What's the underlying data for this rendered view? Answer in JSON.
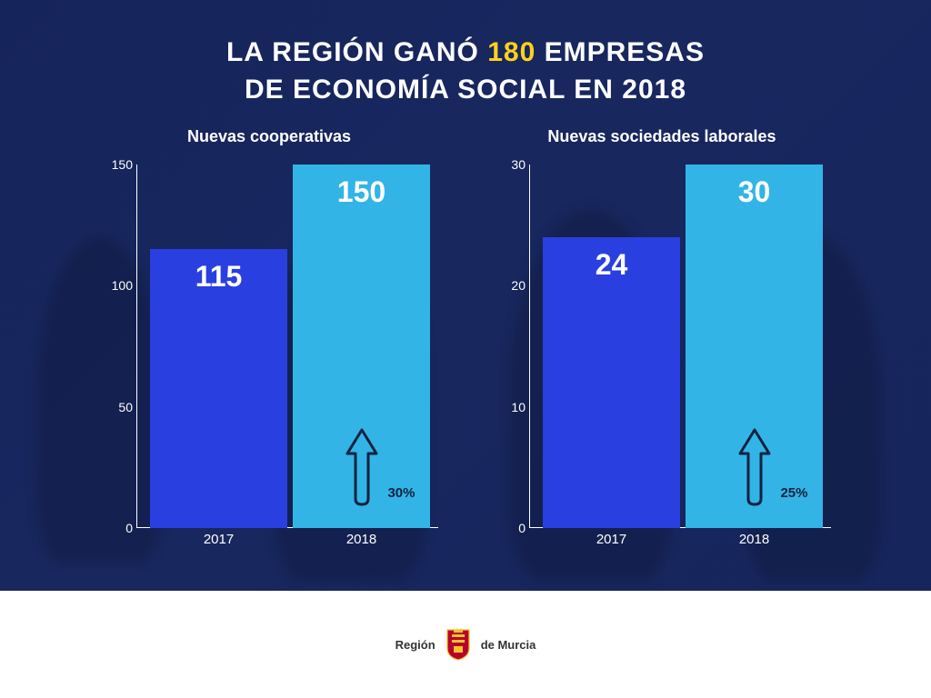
{
  "title": {
    "line1_pre": "LA REGIÓN GANÓ ",
    "highlight": "180",
    "line1_post": " EMPRESAS",
    "line2": "DE ECONOMÍA SOCIAL EN 2018",
    "color": "#ffffff",
    "highlight_color": "#ffd21a",
    "fontsize": 30
  },
  "background": {
    "overlay_color": "#14235a",
    "overlay_opacity": 0.82
  },
  "charts": [
    {
      "title": "Nuevas cooperativas",
      "type": "bar",
      "ylim": [
        0,
        150
      ],
      "yticks": [
        0,
        50,
        100,
        150
      ],
      "bars": [
        {
          "label": "2017",
          "value": 115,
          "color": "#2a3fe0"
        },
        {
          "label": "2018",
          "value": 150,
          "color": "#32b4e6",
          "growth_pct": "30%"
        }
      ],
      "axis_color": "#ffffff",
      "label_color": "#ffffff",
      "value_fontsize": 32,
      "arrow_color": "#10223f"
    },
    {
      "title": "Nuevas sociedades laborales",
      "type": "bar",
      "ylim": [
        0,
        30
      ],
      "yticks": [
        0,
        10,
        20,
        30
      ],
      "bars": [
        {
          "label": "2017",
          "value": 24,
          "color": "#2a3fe0"
        },
        {
          "label": "2018",
          "value": 30,
          "color": "#32b4e6",
          "growth_pct": "25%"
        }
      ],
      "axis_color": "#ffffff",
      "label_color": "#ffffff",
      "value_fontsize": 32,
      "arrow_color": "#10223f"
    }
  ],
  "footer": {
    "left_text": "Región",
    "right_text": "de Murcia",
    "text_color": "#333333",
    "shield_primary": "#b8002e",
    "shield_secondary": "#f4c430",
    "background": "#ffffff"
  }
}
